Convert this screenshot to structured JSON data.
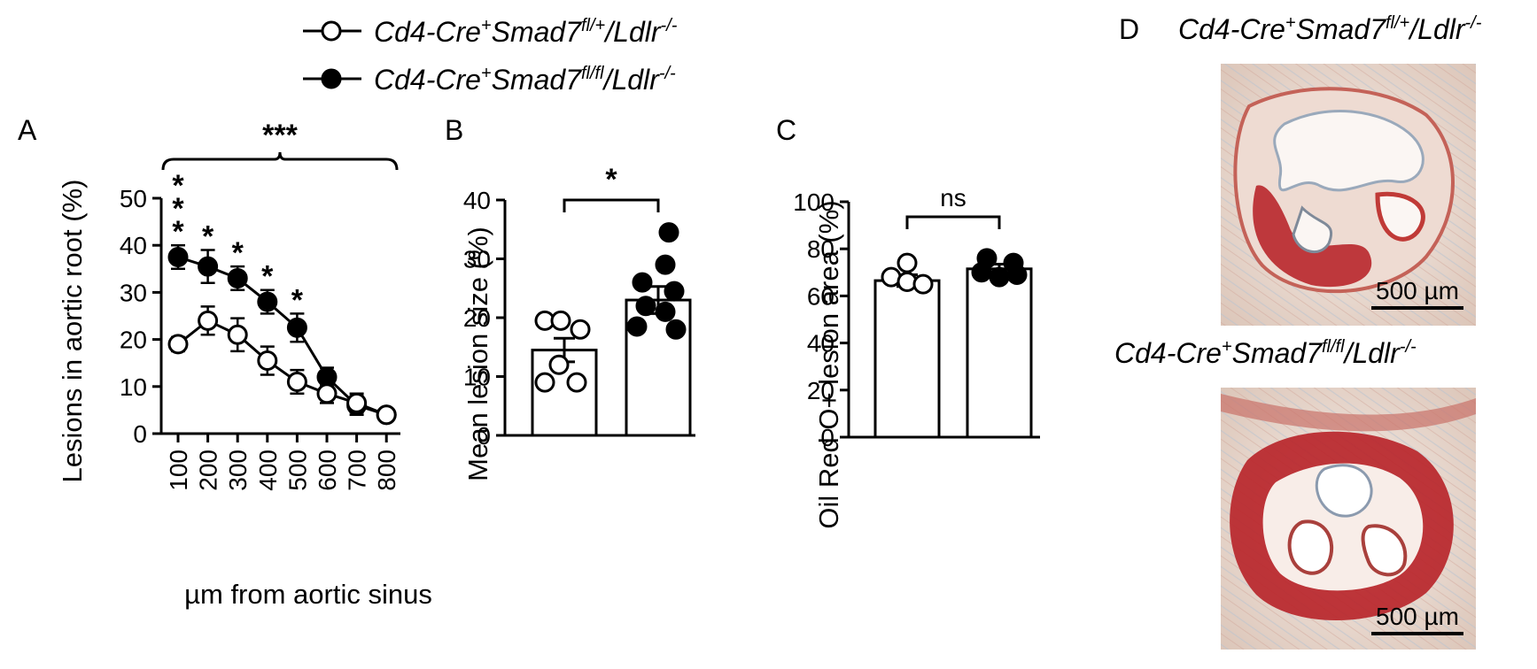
{
  "legend": {
    "entries": [
      {
        "marker": "open",
        "base": "Cd4-Cre",
        "sup1": "+",
        "mid": "Smad7",
        "sup2": "fl/+",
        "tail": "/Ldlr",
        "sup3": "-/-"
      },
      {
        "marker": "filled",
        "base": "Cd4-Cre",
        "sup1": "+",
        "mid": "Smad7",
        "sup2": "fl/fl",
        "tail": "/Ldlr",
        "sup3": "-/-"
      }
    ]
  },
  "colors": {
    "open": "#ffffff",
    "filled": "#000000",
    "stain": "#b8262b",
    "background_tissue": "#e9d9cf"
  },
  "chart_data": [
    {
      "panel": "A",
      "type": "line",
      "ylabel": "Lesions in aortic root (%)",
      "xlabel": "µm from aortic sinus",
      "x": [
        100,
        200,
        300,
        400,
        500,
        600,
        700,
        800
      ],
      "x_tick_labels": [
        "100",
        "200",
        "300",
        "400",
        "500",
        "600",
        "700",
        "800"
      ],
      "ylim": [
        0,
        50
      ],
      "y_ticks": [
        0,
        10,
        20,
        30,
        40,
        50
      ],
      "y_tick_labels": [
        "0",
        "10",
        "20",
        "30",
        "40",
        "50"
      ],
      "series": [
        {
          "marker": "open",
          "values": [
            19,
            24,
            21,
            15.5,
            11,
            8.5,
            6.5,
            4
          ],
          "errors": [
            1.5,
            3,
            3.5,
            3,
            2.5,
            2,
            2,
            0.5
          ]
        },
        {
          "marker": "filled",
          "values": [
            37.5,
            35.5,
            33,
            28,
            22.5,
            12,
            6,
            4
          ],
          "errors": [
            2.5,
            3.5,
            2.5,
            2.5,
            3,
            2,
            2,
            0.5
          ]
        }
      ],
      "point_annotations": [
        {
          "x": 100,
          "lines": [
            "*",
            "*",
            "*"
          ]
        },
        {
          "x": 200,
          "lines": [
            "*"
          ]
        },
        {
          "x": 300,
          "lines": [
            "*"
          ]
        },
        {
          "x": 400,
          "lines": [
            "*"
          ]
        },
        {
          "x": 500,
          "lines": [
            "*"
          ]
        }
      ],
      "bracket_label": "***"
    },
    {
      "panel": "B",
      "type": "bar",
      "ylabel": "Mean lesion size (%)",
      "ylim": [
        0,
        40
      ],
      "y_ticks": [
        0,
        10,
        20,
        30,
        40
      ],
      "y_tick_labels": [
        "0",
        "10",
        "20",
        "30",
        "40"
      ],
      "groups": [
        {
          "marker": "open",
          "mean": 14.5,
          "sem": 2,
          "points": [
            19.5,
            19.5,
            18,
            12,
            9,
            9
          ]
        },
        {
          "marker": "filled",
          "mean": 23,
          "sem": 2.3,
          "points": [
            34.5,
            29,
            26,
            24.5,
            22,
            21,
            18.5,
            18
          ]
        }
      ],
      "bracket_label": "*"
    },
    {
      "panel": "C",
      "type": "bar",
      "ylabel": "Oil Red O+ lesion area (%)",
      "ylim": [
        0,
        100
      ],
      "y_ticks": [
        0,
        20,
        40,
        60,
        80,
        100
      ],
      "y_tick_labels": [
        "0",
        "20",
        "40",
        "60",
        "80",
        "100"
      ],
      "groups": [
        {
          "marker": "open",
          "mean": 66.5,
          "sem": 2.5,
          "points": [
            74,
            68,
            66,
            65
          ]
        },
        {
          "marker": "filled",
          "mean": 71.5,
          "sem": 2,
          "points": [
            76,
            74,
            70,
            69,
            68
          ]
        }
      ],
      "bracket_label": "ns"
    }
  ],
  "panel_labels": {
    "A": "A",
    "B": "B",
    "C": "C",
    "D": "D"
  },
  "micrographs": [
    {
      "title_legend_index": 0,
      "scale_bar": "500 µm"
    },
    {
      "title_legend_index": 1,
      "scale_bar": "500 µm"
    }
  ]
}
